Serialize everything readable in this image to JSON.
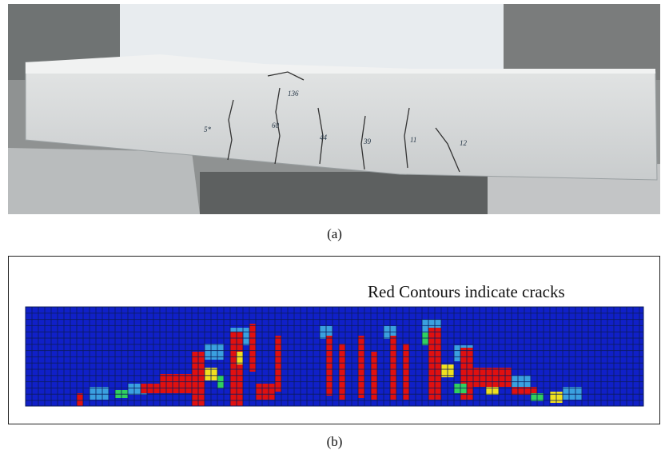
{
  "figure": {
    "panel_a": {
      "label": "(a)"
    },
    "panel_b": {
      "label": "(b)",
      "annotation": "Red Contours indicate cracks"
    }
  }
}
